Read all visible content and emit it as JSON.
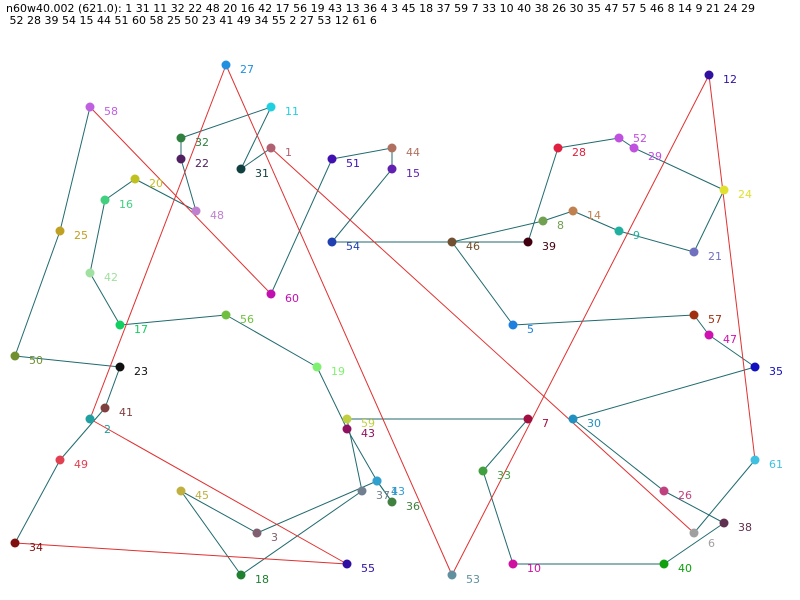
{
  "header": {
    "line1": "n60w40.002 (621.0): 1 31 11 32 22 48 20 16 42 17 56 19 43 13 36 4 3 45 18 37 59 7 33 10 40 38 26 30 35 47 57 5 46 8 14 9 21 24 29",
    "line2": " 52 28 39 54 15 44 51 60 58 25 50 23 41 49 34 55 2 27 53 12 61 6"
  },
  "nodes": [
    {
      "id": "1",
      "color": "#b06070"
    },
    {
      "id": "2",
      "color": "#20a0a0"
    },
    {
      "id": "3",
      "color": "#806070"
    },
    {
      "id": "4",
      "color": "#3090c0"
    },
    {
      "id": "5",
      "color": "#2080e0"
    },
    {
      "id": "6",
      "color": "#a0a0a0"
    },
    {
      "id": "7",
      "color": "#a01040"
    },
    {
      "id": "8",
      "color": "#70a050"
    },
    {
      "id": "9",
      "color": "#20b0a0"
    },
    {
      "id": "10",
      "color": "#d010a0"
    },
    {
      "id": "11",
      "color": "#20d0e0"
    },
    {
      "id": "12",
      "color": "#3010a0"
    },
    {
      "id": "13",
      "color": "#30a0d0"
    },
    {
      "id": "14",
      "color": "#c08050"
    },
    {
      "id": "15",
      "color": "#6020b0"
    },
    {
      "id": "16",
      "color": "#40d080"
    },
    {
      "id": "17",
      "color": "#10d060"
    },
    {
      "id": "18",
      "color": "#208030"
    },
    {
      "id": "19",
      "color": "#80f070"
    },
    {
      "id": "20",
      "color": "#c0c020"
    },
    {
      "id": "21",
      "color": "#7070c0"
    },
    {
      "id": "22",
      "color": "#502060"
    },
    {
      "id": "23",
      "color": "#101010"
    },
    {
      "id": "24",
      "color": "#e0e030"
    },
    {
      "id": "25",
      "color": "#c0a020"
    },
    {
      "id": "26",
      "color": "#c04080"
    },
    {
      "id": "27",
      "color": "#2090e0"
    },
    {
      "id": "28",
      "color": "#e02040"
    },
    {
      "id": "29",
      "color": "#c050e0"
    },
    {
      "id": "30",
      "color": "#2090c0"
    },
    {
      "id": "31",
      "color": "#104040"
    },
    {
      "id": "32",
      "color": "#308040"
    },
    {
      "id": "33",
      "color": "#40a040"
    },
    {
      "id": "34",
      "color": "#801010"
    },
    {
      "id": "35",
      "color": "#1010c0"
    },
    {
      "id": "36",
      "color": "#408040"
    },
    {
      "id": "37",
      "color": "#708090"
    },
    {
      "id": "38",
      "color": "#603050"
    },
    {
      "id": "39",
      "color": "#400010"
    },
    {
      "id": "40",
      "color": "#10a010"
    },
    {
      "id": "41",
      "color": "#804040"
    },
    {
      "id": "42",
      "color": "#a0e0a0"
    },
    {
      "id": "43",
      "color": "#901060"
    },
    {
      "id": "44",
      "color": "#b07060"
    },
    {
      "id": "45",
      "color": "#c0b040"
    },
    {
      "id": "46",
      "color": "#705030"
    },
    {
      "id": "47",
      "color": "#d010b0"
    },
    {
      "id": "48",
      "color": "#c080d0"
    },
    {
      "id": "49",
      "color": "#e04050"
    },
    {
      "id": "50",
      "color": "#709030"
    },
    {
      "id": "51",
      "color": "#4010b0"
    },
    {
      "id": "52",
      "color": "#c050e0"
    },
    {
      "id": "53",
      "color": "#6090a0"
    },
    {
      "id": "54",
      "color": "#2040b0"
    },
    {
      "id": "55",
      "color": "#3010a0"
    },
    {
      "id": "56",
      "color": "#70c040"
    },
    {
      "id": "57",
      "color": "#a03010"
    },
    {
      "id": "58",
      "color": "#c060e0"
    },
    {
      "id": "59",
      "color": "#c0d040"
    },
    {
      "id": "60",
      "color": "#c010b0"
    },
    {
      "id": "61",
      "color": "#40c0e0"
    }
  ],
  "tour": [
    "1",
    "31",
    "11",
    "32",
    "22",
    "48",
    "20",
    "16",
    "42",
    "17",
    "56",
    "19",
    "43",
    "13",
    "36",
    "4",
    "3",
    "45",
    "18",
    "37",
    "59",
    "7",
    "33",
    "10",
    "40",
    "38",
    "26",
    "30",
    "35",
    "47",
    "57",
    "5",
    "46",
    "8",
    "14",
    "9",
    "21",
    "24",
    "29",
    "52",
    "28",
    "39",
    "54",
    "15",
    "44",
    "51",
    "60",
    "58",
    "25",
    "50",
    "23",
    "41",
    "49",
    "34",
    "55",
    "2",
    "27",
    "53",
    "12",
    "61",
    "6"
  ],
  "edge_colors": {
    "tour": "#206a6e",
    "closing": "#e03030",
    "long": "#e03030"
  }
}
